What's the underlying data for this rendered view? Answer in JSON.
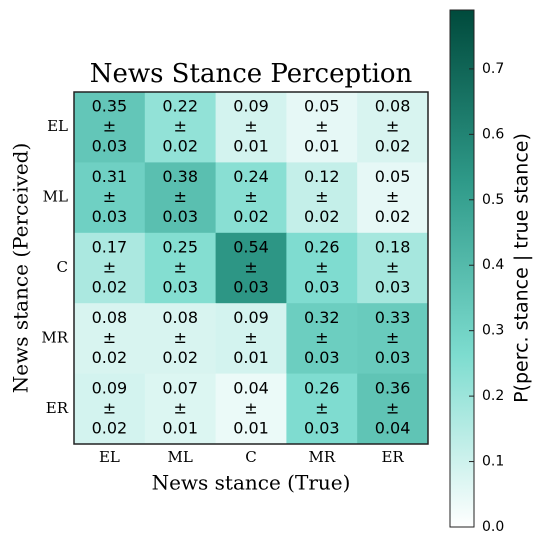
{
  "chart_data": {
    "type": "heatmap",
    "title": "News Stance Perception",
    "x_label": "News stance (True)",
    "y_label": "News stance (Perceived)",
    "x_categories": [
      "EL",
      "ML",
      "C",
      "MR",
      "ER"
    ],
    "y_categories": [
      "EL",
      "ML",
      "C",
      "MR",
      "ER"
    ],
    "values": [
      [
        0.35,
        0.22,
        0.09,
        0.05,
        0.08
      ],
      [
        0.31,
        0.38,
        0.24,
        0.12,
        0.05
      ],
      [
        0.17,
        0.25,
        0.54,
        0.26,
        0.18
      ],
      [
        0.08,
        0.08,
        0.09,
        0.32,
        0.33
      ],
      [
        0.09,
        0.07,
        0.04,
        0.26,
        0.36
      ]
    ],
    "separator": "±",
    "errors": [
      [
        0.03,
        0.02,
        0.01,
        0.01,
        0.02
      ],
      [
        0.03,
        0.03,
        0.02,
        0.02,
        0.02
      ],
      [
        0.02,
        0.03,
        0.03,
        0.03,
        0.03
      ],
      [
        0.02,
        0.02,
        0.01,
        0.03,
        0.03
      ],
      [
        0.02,
        0.01,
        0.01,
        0.03,
        0.04
      ]
    ],
    "colormap": [
      "#ffffff",
      "#7ddccf",
      "#2f9a89",
      "#004a3c"
    ],
    "colorbar_label": "P(perc. stance | true stance)",
    "clim": [
      0,
      0.79
    ],
    "cticks": [
      {
        "value": 0,
        "label": "0.0"
      },
      0.1,
      0.2,
      0.3,
      0.4,
      0.5,
      0.6,
      0.7
    ]
  }
}
